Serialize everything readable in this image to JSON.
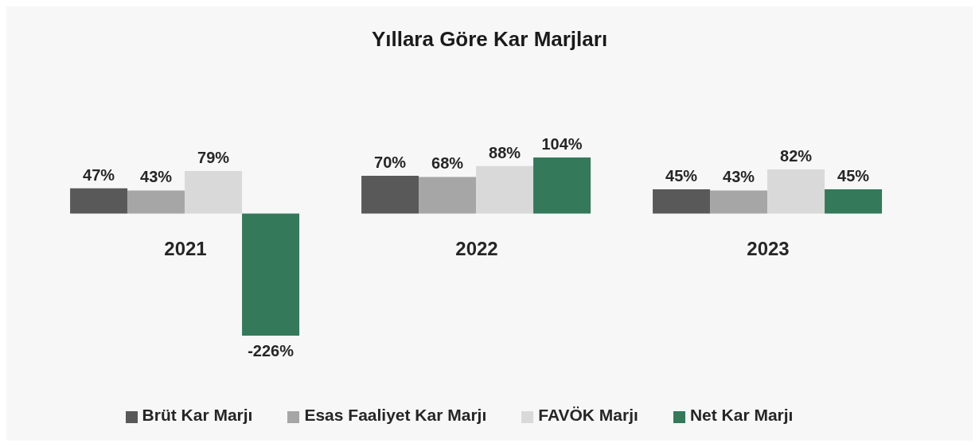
{
  "chart_data": {
    "type": "bar",
    "title": "Yıllara Göre Kar Marjları",
    "categories": [
      "2021",
      "2022",
      "2023"
    ],
    "series": [
      {
        "name": "Brüt Kar Marjı",
        "color": "#595959",
        "values": [
          47,
          70,
          45
        ],
        "value_labels": [
          "47%",
          "70%",
          "45%"
        ]
      },
      {
        "name": "Esas Faaliyet Kar Marjı",
        "color": "#a6a6a6",
        "values": [
          43,
          68,
          43
        ],
        "value_labels": [
          "43%",
          "68%",
          "43%"
        ]
      },
      {
        "name": "FAVÖK Marjı",
        "color": "#d9d9d9",
        "values": [
          79,
          88,
          82
        ],
        "value_labels": [
          "79%",
          "88%",
          "82%"
        ]
      },
      {
        "name": "Net Kar Marjı",
        "color": "#33795a",
        "values": [
          -226,
          104,
          45
        ],
        "value_labels": [
          "-226%",
          "104%",
          "45%"
        ]
      }
    ],
    "legend": "bottom"
  }
}
